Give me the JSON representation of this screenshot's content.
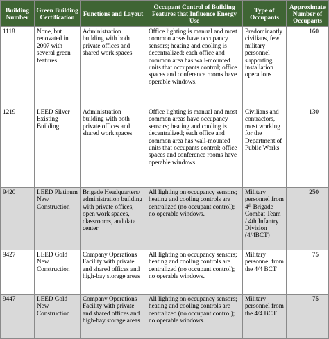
{
  "table": {
    "headers": [
      "Building Number",
      "Green Building Certification",
      "Functions and Layout",
      "Occupant Control of Building Features that Influence Energy Use",
      "Type of Occupants",
      "Approximate Number of Occupants"
    ],
    "rows": [
      {
        "building": "1118",
        "certification": "None, but renovated in 2007 with several green features",
        "functions": "Administration building with both private offices and shared work spaces",
        "control": "Office lighting is manual and most common areas have occupancy sensors; heating and cooling is decentralized; each office and common area has wall-mounted units that occupants control; office spaces and conference rooms have operable windows.",
        "occupants": "Predominantly civilians, few military personnel supporting installation operations",
        "number": "160"
      },
      {
        "building": "1219",
        "certification": "LEED Silver Existing Building",
        "functions": "Administration building with both private offices and shared work spaces",
        "control": "Office lighting is manual and most common areas have occupancy sensors; heating and cooling is decentralized; each office and common area has wall-mounted units that occupants control; office spaces and conference rooms have operable windows.",
        "occupants": "Civilians and contractors, most working for the Department of Public Works",
        "number": "130"
      },
      {
        "building": "9420",
        "certification": "LEED Platinum New Construction",
        "functions": "Brigade Headquarters/ administration building with private offices, open work spaces, classrooms, and data center",
        "control": "All lighting on occupancy sensors; heating and cooling controls are centralized (no occupant control); no operable windows.",
        "occupants_pre": "Military personnel from 4",
        "occupants_sup": "th",
        "occupants_post": " Brigade Combat Team / 4th Infantry Division (4/4BCT)",
        "number": "250"
      },
      {
        "building": "9427",
        "certification": "LEED Gold New Construction",
        "functions": "Company Operations Facility with private and shared offices and high-bay storage areas",
        "control": "All lighting on occupancy sensors; heating and cooling controls are centralized (no occupant control); no operable windows.",
        "occupants": "Military personnel from the 4/4 BCT",
        "number": "75"
      },
      {
        "building": "9447",
        "certification": "LEED Gold New Construction",
        "functions": "Company Operations Facility with private and shared offices and high-bay storage areas",
        "control": "All lighting on occupancy sensors; heating and cooling controls are centralized (no occupant control); no operable windows.",
        "occupants": "Military personnel from the 4/4 BCT",
        "number": "75"
      }
    ]
  }
}
